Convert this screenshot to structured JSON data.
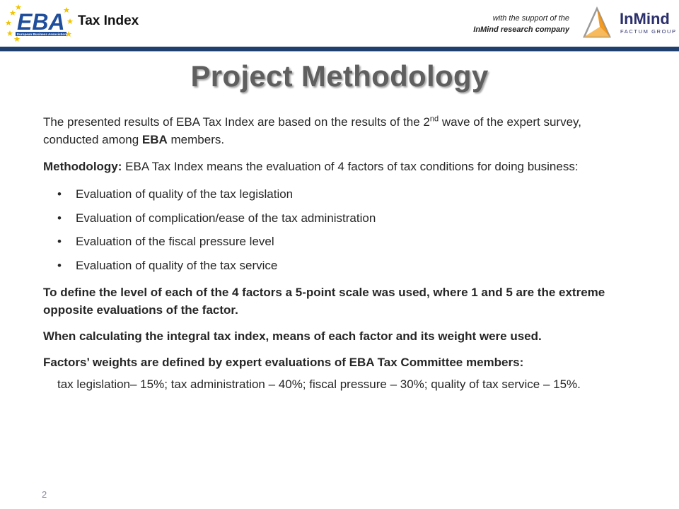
{
  "header": {
    "logo_text": "EBA",
    "logo_subtext": "European Business Association",
    "tax_index": "Tax Index",
    "support_line1": "with the support of the",
    "support_line2": "InMind research company",
    "inmind_logo_text": "InMind",
    "inmind_logo_subtext": "FACTUM GROUP"
  },
  "title": "Project Methodology",
  "intro": {
    "part1": "The presented results of EBA Tax Index are based on the results of the 2",
    "sup": "nd",
    "part2": " wave of the expert survey, conducted among ",
    "bold": "EBA",
    "part3": " members."
  },
  "methodology": {
    "label": "Methodology:",
    "text": " EBA Tax Index means the evaluation of 4 factors of tax conditions for doing business:"
  },
  "bullet_glyph": "•",
  "bullets": [
    "Evaluation of quality of the tax legislation",
    "Evaluation of complication/ease of the tax administration",
    "Evaluation of the fiscal pressure level",
    "Evaluation of quality of the tax service"
  ],
  "scale_note": "To define the level of each of the 4 factors a 5-point scale was used, where 1 and 5 are the extreme opposite evaluations of the factor.",
  "calc_note": "When calculating the integral tax index, means of each factor and its weight were used.",
  "weights_heading": "Factors’ weights are defined by expert evaluations of EBA Tax Committee members:",
  "weights_text": "tax legislation– 15%; tax administration – 40%; fiscal pressure – 30%; quality of tax service – 15%.",
  "page_number": "2",
  "colors": {
    "header_rule": "#1f3f6f",
    "eba_blue": "#1f4e9c",
    "star_yellow": "#f2c500",
    "title_gray": "#5f5f5f",
    "inmind_navy": "#2b2f6b",
    "inmind_orange": "#f08a00"
  }
}
